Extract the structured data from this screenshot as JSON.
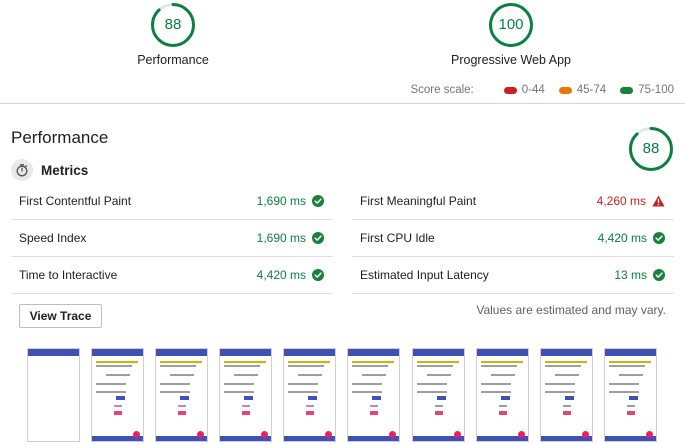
{
  "top_gauges": [
    {
      "score": "88",
      "label": "Performance",
      "fraction": 0.88,
      "color": "#0b8043"
    },
    {
      "score": "100",
      "label": "Progressive Web App",
      "fraction": 1.0,
      "color": "#0b8043"
    }
  ],
  "score_scale": {
    "title": "Score scale:",
    "items": [
      {
        "label": "0-44",
        "color": "#c7221f"
      },
      {
        "label": "45-74",
        "color": "#e67700"
      },
      {
        "label": "75-100",
        "color": "#178239"
      }
    ]
  },
  "performance": {
    "title": "Performance",
    "score": "88",
    "fraction": 0.88,
    "metrics_title": "Metrics",
    "metrics_icon": "stopwatch-icon",
    "metrics": [
      {
        "name": "First Contentful Paint",
        "value": "1,690 ms",
        "status": "pass"
      },
      {
        "name": "First Meaningful Paint",
        "value": "4,260 ms",
        "status": "fail"
      },
      {
        "name": "Speed Index",
        "value": "1,690 ms",
        "status": "pass"
      },
      {
        "name": "First CPU Idle",
        "value": "4,420 ms",
        "status": "pass"
      },
      {
        "name": "Time to Interactive",
        "value": "4,420 ms",
        "status": "pass"
      },
      {
        "name": "Estimated Input Latency",
        "value": "13 ms",
        "status": "pass"
      }
    ],
    "view_trace_label": "View Trace",
    "estimate_note": "Values are estimated and may vary."
  },
  "filmstrip": {
    "frame_count": 10,
    "first_frame_blank": true
  },
  "colors": {
    "pass": "#0b8043",
    "fail": "#c7221f",
    "app_bar": "#3f51b5",
    "accent": "#e91e63"
  }
}
